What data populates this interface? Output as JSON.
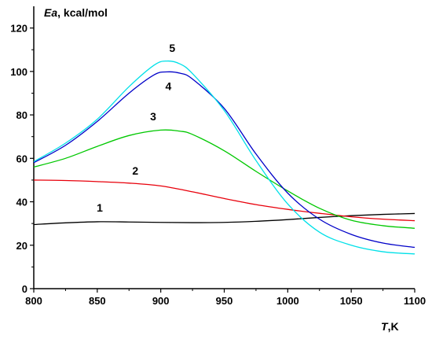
{
  "chart_data": {
    "type": "line",
    "xlabel": {
      "symbol": "T",
      "unit": ",K"
    },
    "ylabel": {
      "symbol": "Ea",
      "unit": ", kcal/mol"
    },
    "xlim": [
      800,
      1100
    ],
    "ylim": [
      0,
      130
    ],
    "x_ticks": [
      800,
      850,
      900,
      950,
      1000,
      1050,
      1100
    ],
    "y_ticks": [
      0,
      20,
      40,
      60,
      80,
      100,
      120
    ],
    "grid": false,
    "series": [
      {
        "label": "1",
        "color": "#000000",
        "label_at": [
          852,
          35.5
        ],
        "points": [
          [
            800,
            29.5
          ],
          [
            825,
            30.3
          ],
          [
            850,
            30.8
          ],
          [
            875,
            30.7
          ],
          [
            900,
            30.5
          ],
          [
            925,
            30.4
          ],
          [
            950,
            30.5
          ],
          [
            975,
            31
          ],
          [
            1000,
            31.8
          ],
          [
            1025,
            32.8
          ],
          [
            1050,
            33.6
          ],
          [
            1075,
            34.2
          ],
          [
            1100,
            34.6
          ]
        ]
      },
      {
        "label": "2",
        "color": "#e8000b",
        "label_at": [
          880,
          52.5
        ],
        "points": [
          [
            800,
            50
          ],
          [
            825,
            49.8
          ],
          [
            850,
            49.3
          ],
          [
            875,
            48.6
          ],
          [
            900,
            47.3
          ],
          [
            925,
            44.6
          ],
          [
            950,
            41.5
          ],
          [
            975,
            38.7
          ],
          [
            1000,
            36.5
          ],
          [
            1025,
            34.7
          ],
          [
            1050,
            33.1
          ],
          [
            1075,
            32
          ],
          [
            1100,
            31.3
          ]
        ]
      },
      {
        "label": "3",
        "color": "#00c800",
        "label_at": [
          894,
          77.5
        ],
        "points": [
          [
            800,
            56
          ],
          [
            825,
            60
          ],
          [
            850,
            65.5
          ],
          [
            875,
            70.5
          ],
          [
            900,
            73
          ],
          [
            915,
            72.5
          ],
          [
            925,
            71
          ],
          [
            950,
            63.5
          ],
          [
            975,
            54
          ],
          [
            1000,
            45
          ],
          [
            1025,
            37
          ],
          [
            1050,
            31.5
          ],
          [
            1075,
            29
          ],
          [
            1100,
            27.8
          ]
        ]
      },
      {
        "label": "4",
        "color": "#0000c8",
        "label_at": [
          906,
          91.5
        ],
        "points": [
          [
            800,
            58
          ],
          [
            825,
            66
          ],
          [
            850,
            77
          ],
          [
            875,
            90
          ],
          [
            895,
            98.5
          ],
          [
            905,
            99.8
          ],
          [
            915,
            99.2
          ],
          [
            925,
            96.5
          ],
          [
            950,
            83
          ],
          [
            975,
            62
          ],
          [
            1000,
            44
          ],
          [
            1025,
            32
          ],
          [
            1050,
            25
          ],
          [
            1075,
            21
          ],
          [
            1100,
            19
          ]
        ]
      },
      {
        "label": "5",
        "color": "#00e0e8",
        "label_at": [
          909,
          109
        ],
        "points": [
          [
            800,
            58.5
          ],
          [
            825,
            67
          ],
          [
            850,
            78
          ],
          [
            875,
            93
          ],
          [
            895,
            103
          ],
          [
            905,
            104.8
          ],
          [
            915,
            103.5
          ],
          [
            925,
            99
          ],
          [
            950,
            82
          ],
          [
            975,
            59
          ],
          [
            1000,
            39
          ],
          [
            1025,
            26
          ],
          [
            1050,
            20
          ],
          [
            1075,
            17
          ],
          [
            1100,
            16
          ]
        ]
      }
    ]
  }
}
